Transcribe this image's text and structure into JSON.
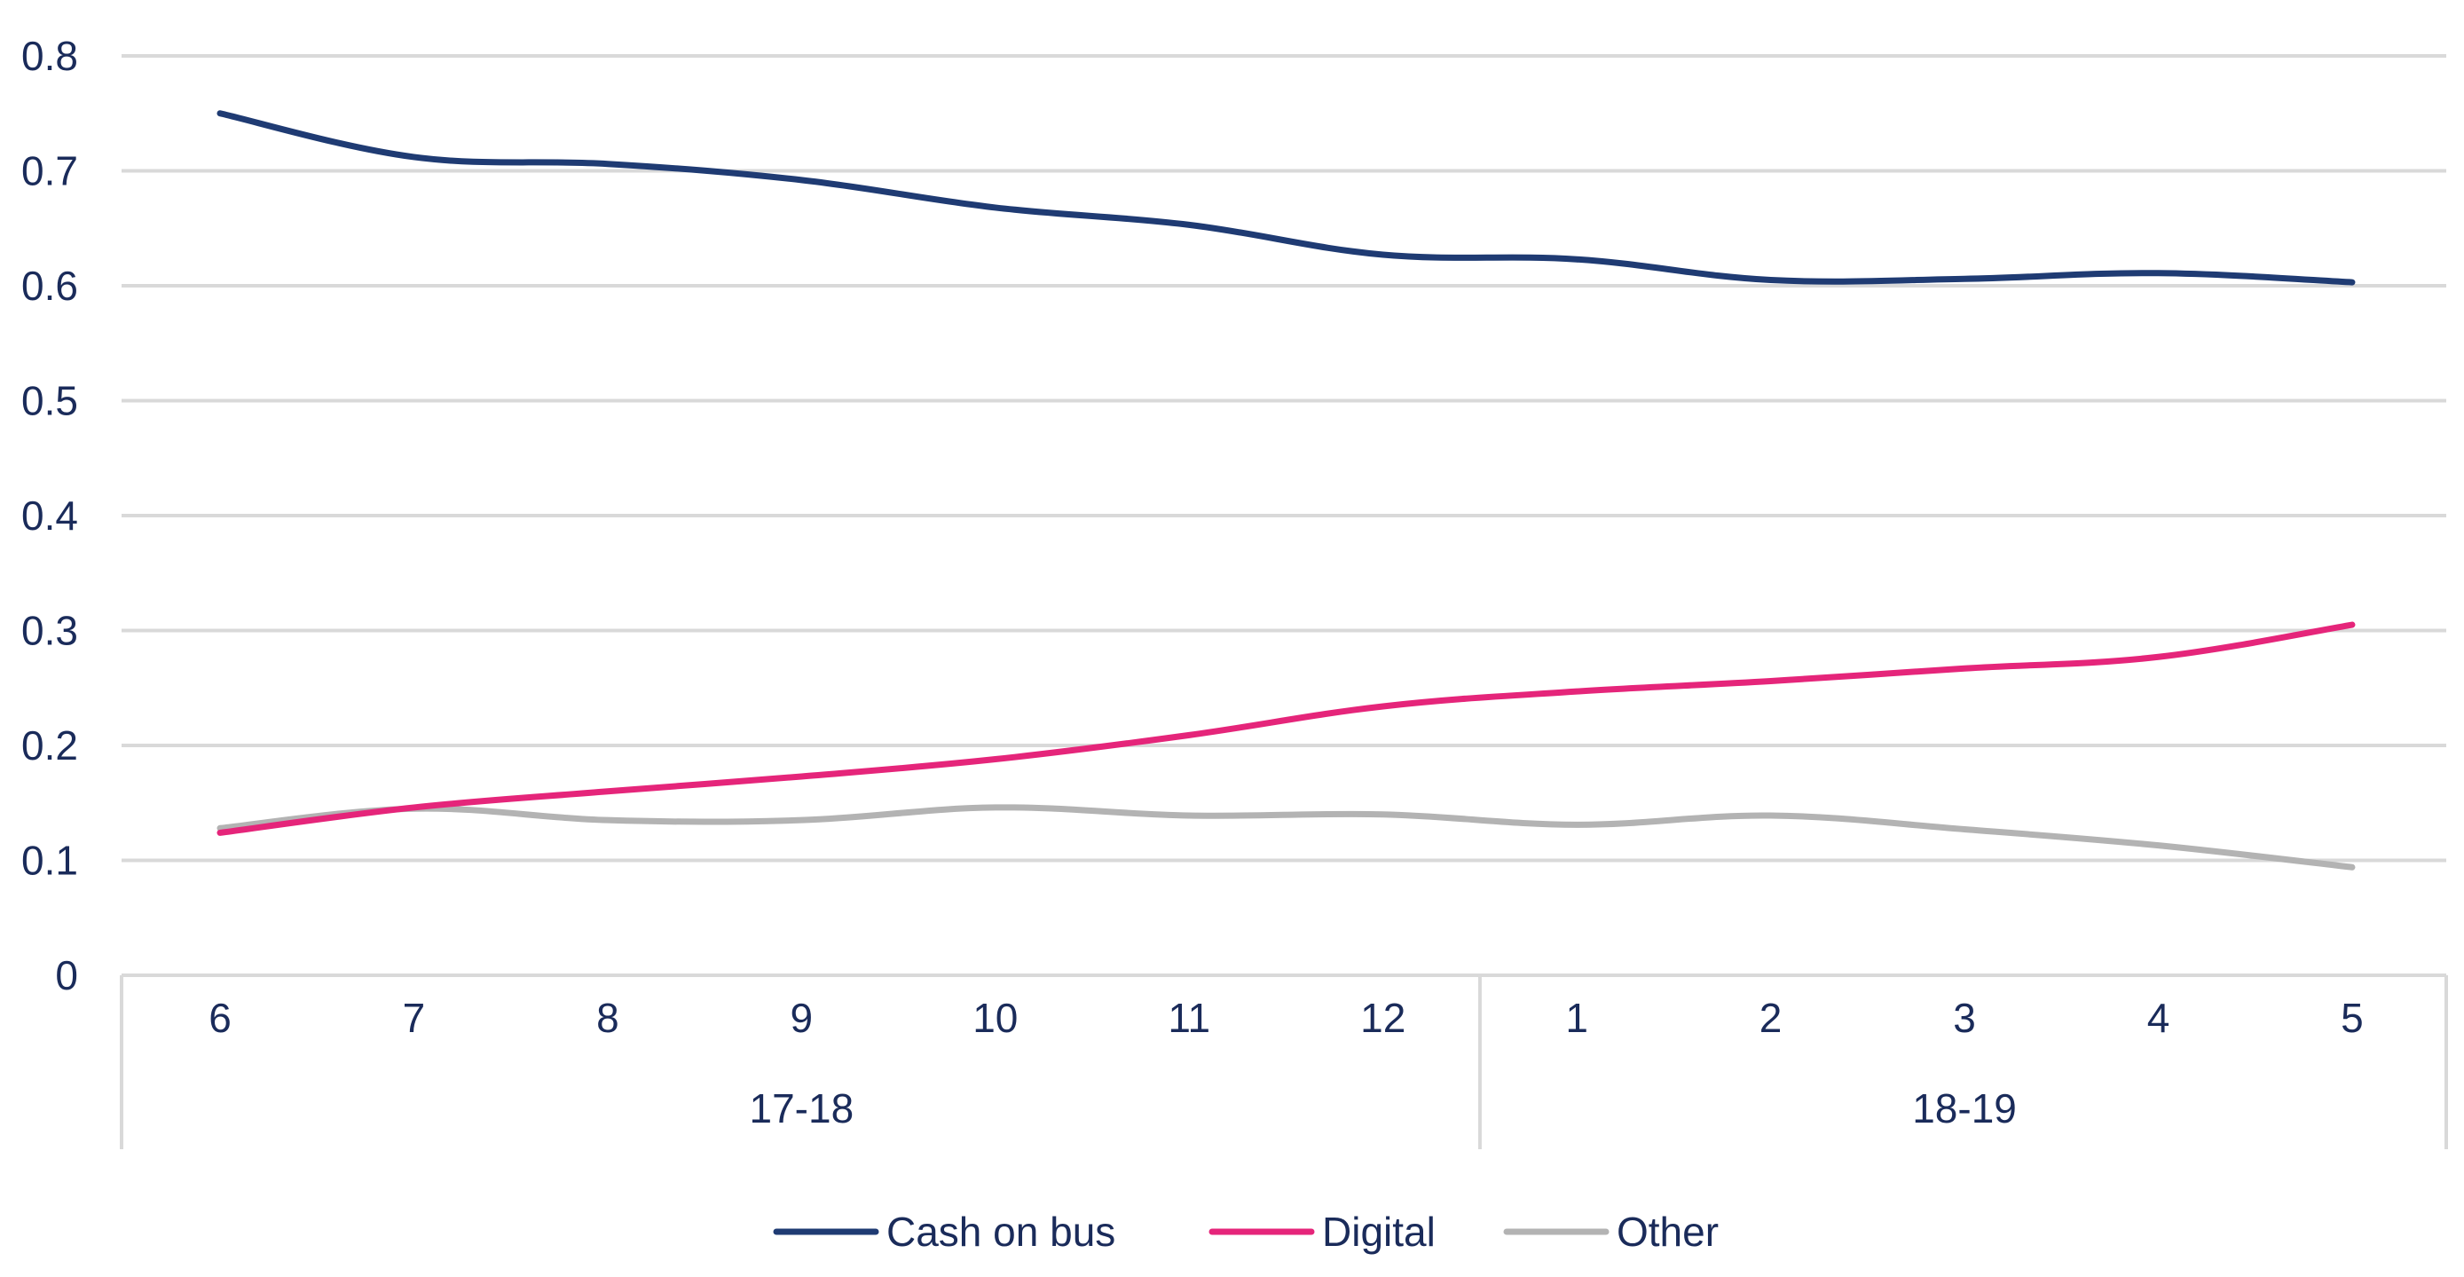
{
  "chart_data": {
    "type": "line",
    "categories": [
      "6",
      "7",
      "8",
      "9",
      "10",
      "11",
      "12",
      "1",
      "2",
      "3",
      "4",
      "5"
    ],
    "groups": [
      {
        "label": "17-18",
        "count": 7
      },
      {
        "label": "18-19",
        "count": 5
      }
    ],
    "series": [
      {
        "name": "Cash on bus",
        "color": "#1f3b73",
        "values": [
          0.75,
          0.712,
          0.706,
          0.692,
          0.668,
          0.653,
          0.627,
          0.623,
          0.605,
          0.606,
          0.611,
          0.603
        ]
      },
      {
        "name": "Digital",
        "color": "#e5257a",
        "values": [
          0.124,
          0.146,
          0.16,
          0.173,
          0.188,
          0.209,
          0.234,
          0.247,
          0.256,
          0.267,
          0.277,
          0.305
        ]
      },
      {
        "name": "Other",
        "color": "#b3b3b3",
        "values": [
          0.128,
          0.145,
          0.135,
          0.135,
          0.146,
          0.139,
          0.14,
          0.131,
          0.139,
          0.127,
          0.113,
          0.094
        ]
      }
    ],
    "ylim": [
      0,
      0.8
    ],
    "yticks": [
      "0",
      "0.1",
      "0.2",
      "0.3",
      "0.4",
      "0.5",
      "0.6",
      "0.7",
      "0.8"
    ],
    "grid": true,
    "legend_position": "bottom-center"
  }
}
